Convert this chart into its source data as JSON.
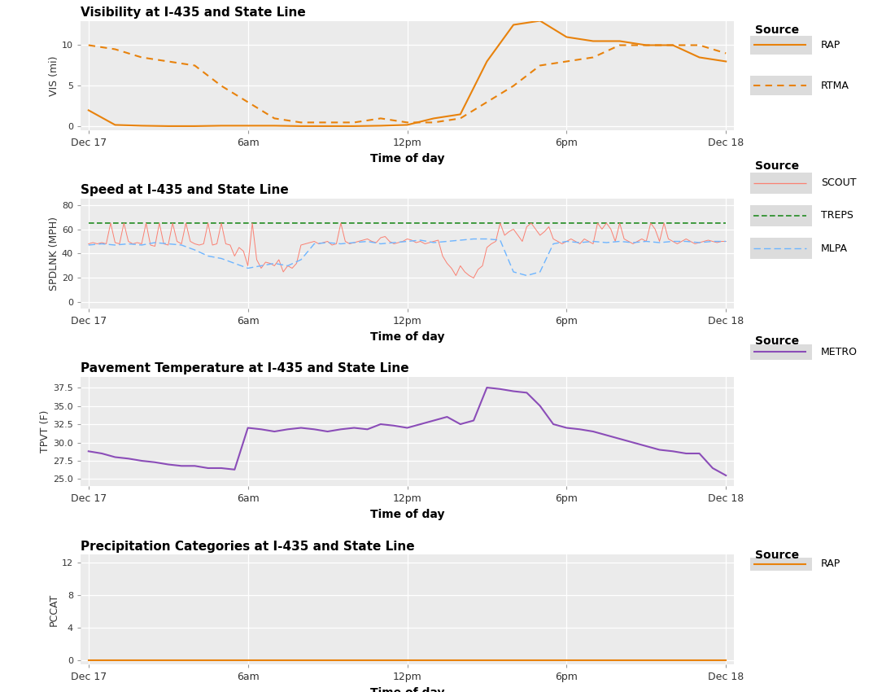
{
  "fig_bg": "#FFFFFF",
  "panel_bg": "#EBEBEB",
  "grid_color": "#FFFFFF",
  "legend_key_bg": "#DCDCDC",
  "panel1": {
    "title": "Visibility at I-435 and State Line",
    "ylabel": "VIS (mi)",
    "ylim": [
      -0.5,
      13
    ],
    "yticks": [
      0,
      5,
      10
    ],
    "rap_x": [
      0,
      1,
      2,
      3,
      4,
      5,
      6,
      7,
      8,
      9,
      10,
      11,
      12,
      13,
      14,
      15,
      16,
      17,
      18,
      19,
      20,
      21,
      22,
      23,
      24
    ],
    "rap_y": [
      2.0,
      0.2,
      0.1,
      0.05,
      0.05,
      0.1,
      0.1,
      0.1,
      0.05,
      0.05,
      0.05,
      0.1,
      0.2,
      1.0,
      1.5,
      8.0,
      12.5,
      13.0,
      11.0,
      10.5,
      10.5,
      10.0,
      10.0,
      8.5,
      8.0
    ],
    "rtma_x": [
      0,
      1,
      2,
      3,
      4,
      5,
      6,
      7,
      8,
      9,
      10,
      11,
      12,
      13,
      14,
      15,
      16,
      17,
      18,
      19,
      20,
      21,
      22,
      23,
      24
    ],
    "rtma_y": [
      10.0,
      9.5,
      8.5,
      8.0,
      7.5,
      5.0,
      3.0,
      1.0,
      0.5,
      0.5,
      0.5,
      1.0,
      0.5,
      0.5,
      1.0,
      3.0,
      5.0,
      7.5,
      8.0,
      8.5,
      10.0,
      10.0,
      10.0,
      10.0,
      9.0
    ]
  },
  "panel2": {
    "title": "Speed at I-435 and State Line",
    "ylabel": "SPDLNK (MPH)",
    "ylim": [
      -5,
      85
    ],
    "yticks": [
      0,
      20,
      40,
      60,
      80
    ],
    "treps_y": 65,
    "scout_x": [
      0,
      0.167,
      0.333,
      0.5,
      0.667,
      0.833,
      1.0,
      1.167,
      1.333,
      1.5,
      1.667,
      1.833,
      2.0,
      2.167,
      2.333,
      2.5,
      2.667,
      2.833,
      3.0,
      3.167,
      3.333,
      3.5,
      3.667,
      3.833,
      4.0,
      4.167,
      4.333,
      4.5,
      4.667,
      4.833,
      5.0,
      5.167,
      5.333,
      5.5,
      5.667,
      5.833,
      6.0,
      6.167,
      6.333,
      6.5,
      6.667,
      6.833,
      7.0,
      7.167,
      7.333,
      7.5,
      7.667,
      7.833,
      8.0,
      8.167,
      8.333,
      8.5,
      8.667,
      8.833,
      9.0,
      9.167,
      9.333,
      9.5,
      9.667,
      9.833,
      10.0,
      10.167,
      10.333,
      10.5,
      10.667,
      10.833,
      11.0,
      11.167,
      11.333,
      11.5,
      11.667,
      11.833,
      12.0,
      12.167,
      12.333,
      12.5,
      12.667,
      12.833,
      13.0,
      13.167,
      13.333,
      13.5,
      13.667,
      13.833,
      14.0,
      14.167,
      14.333,
      14.5,
      14.667,
      14.833,
      15.0,
      15.167,
      15.333,
      15.5,
      15.667,
      15.833,
      16.0,
      16.167,
      16.333,
      16.5,
      16.667,
      16.833,
      17.0,
      17.167,
      17.333,
      17.5,
      17.667,
      17.833,
      18.0,
      18.167,
      18.333,
      18.5,
      18.667,
      18.833,
      19.0,
      19.167,
      19.333,
      19.5,
      19.667,
      19.833,
      20.0,
      20.167,
      20.333,
      20.5,
      20.667,
      20.833,
      21.0,
      21.167,
      21.333,
      21.5,
      21.667,
      21.833,
      22.0,
      22.167,
      22.333,
      22.5,
      22.667,
      22.833,
      23.0,
      23.167,
      23.333,
      23.5,
      23.667,
      23.833,
      24.0
    ],
    "scout_y": [
      48,
      49,
      48,
      49,
      48,
      65,
      49,
      48,
      65,
      50,
      48,
      49,
      48,
      65,
      47,
      46,
      65,
      48,
      47,
      65,
      50,
      48,
      65,
      50,
      48,
      47,
      48,
      65,
      47,
      48,
      65,
      48,
      47,
      38,
      45,
      42,
      30,
      65,
      35,
      28,
      33,
      32,
      30,
      35,
      25,
      30,
      28,
      32,
      47,
      48,
      49,
      50,
      48,
      49,
      50,
      47,
      48,
      65,
      50,
      48,
      49,
      50,
      51,
      52,
      50,
      49,
      53,
      54,
      50,
      48,
      49,
      50,
      52,
      51,
      49,
      50,
      48,
      49,
      50,
      51,
      38,
      32,
      28,
      22,
      30,
      25,
      22,
      20,
      27,
      30,
      45,
      48,
      50,
      65,
      55,
      58,
      60,
      55,
      50,
      62,
      65,
      60,
      55,
      58,
      62,
      52,
      50,
      48,
      50,
      52,
      50,
      48,
      52,
      50,
      48,
      65,
      60,
      65,
      60,
      50,
      65,
      52,
      50,
      48,
      50,
      52,
      50,
      65,
      60,
      50,
      65,
      52,
      50,
      48,
      50,
      52,
      50,
      48,
      49,
      50,
      51,
      50,
      49,
      50,
      50
    ],
    "mlpa_x": [
      0,
      0.5,
      1.0,
      1.5,
      2.0,
      2.5,
      3.0,
      3.5,
      4.0,
      4.5,
      5.0,
      5.5,
      6.0,
      6.5,
      7.0,
      7.5,
      8.0,
      8.5,
      9.0,
      9.5,
      10.0,
      10.5,
      11.0,
      11.5,
      12.0,
      12.5,
      13.0,
      13.5,
      14.0,
      14.5,
      15.0,
      15.5,
      16.0,
      16.5,
      17.0,
      17.5,
      18.0,
      18.5,
      19.0,
      19.5,
      20.0,
      20.5,
      21.0,
      21.5,
      22.0,
      22.5,
      23.0,
      23.5,
      24.0
    ],
    "mlpa_y": [
      47,
      48,
      47,
      48,
      47,
      49,
      48,
      47,
      43,
      38,
      36,
      32,
      28,
      30,
      32,
      30,
      35,
      48,
      49,
      48,
      49,
      50,
      48,
      49,
      50,
      51,
      49,
      50,
      51,
      52,
      52,
      51,
      25,
      22,
      25,
      48,
      50,
      49,
      50,
      49,
      50,
      49,
      50,
      49,
      50,
      50,
      49,
      50,
      50
    ]
  },
  "panel3": {
    "title": "Pavement Temperature at I-435 and State Line",
    "ylabel": "TPVT (F)",
    "ylim": [
      24,
      39
    ],
    "yticks": [
      25.0,
      27.5,
      30.0,
      32.5,
      35.0,
      37.5
    ],
    "metro_x": [
      0,
      0.5,
      1.0,
      1.5,
      2.0,
      2.5,
      3.0,
      3.5,
      4.0,
      4.5,
      5.0,
      5.5,
      6.0,
      6.5,
      7.0,
      7.5,
      8.0,
      8.5,
      9.0,
      9.5,
      10.0,
      10.5,
      11.0,
      11.5,
      12.0,
      12.5,
      13.0,
      13.5,
      14.0,
      14.5,
      15.0,
      15.5,
      16.0,
      16.5,
      17.0,
      17.5,
      18.0,
      18.5,
      19.0,
      19.5,
      20.0,
      20.5,
      21.0,
      21.5,
      22.0,
      22.5,
      23.0,
      23.5,
      24.0
    ],
    "metro_y": [
      28.8,
      28.5,
      28.0,
      27.8,
      27.5,
      27.3,
      27.0,
      26.8,
      26.8,
      26.5,
      26.5,
      26.3,
      32.0,
      31.8,
      31.5,
      31.8,
      32.0,
      31.8,
      31.5,
      31.8,
      32.0,
      31.8,
      32.5,
      32.3,
      32.0,
      32.5,
      33.0,
      33.5,
      32.5,
      33.0,
      37.5,
      37.3,
      37.0,
      36.8,
      35.0,
      32.5,
      32.0,
      31.8,
      31.5,
      31.0,
      30.5,
      30.0,
      29.5,
      29.0,
      28.8,
      28.5,
      28.5,
      26.5,
      25.5
    ]
  },
  "panel4": {
    "title": "Precipitation Categories at I-435 and State Line",
    "ylabel": "PCCAT",
    "ylim": [
      -0.5,
      13
    ],
    "yticks": [
      0,
      4,
      8,
      12
    ],
    "rap_x": [
      0,
      1,
      2,
      3,
      4,
      5,
      6,
      7,
      8,
      9,
      10,
      11,
      12,
      13,
      14,
      15,
      16,
      17,
      18,
      19,
      20,
      21,
      22,
      23,
      24
    ],
    "rap_y": [
      0,
      0,
      0,
      0,
      0,
      0,
      0,
      0,
      0,
      0,
      0,
      0,
      0,
      0,
      0,
      0,
      0,
      0,
      0,
      0,
      0,
      0,
      0,
      0,
      0
    ]
  },
  "xtick_positions": [
    0,
    6,
    12,
    18,
    24
  ],
  "xtick_labels": [
    "Dec 17",
    "6am",
    "12pm",
    "6pm",
    "Dec 18"
  ],
  "xlabel": "Time of day"
}
